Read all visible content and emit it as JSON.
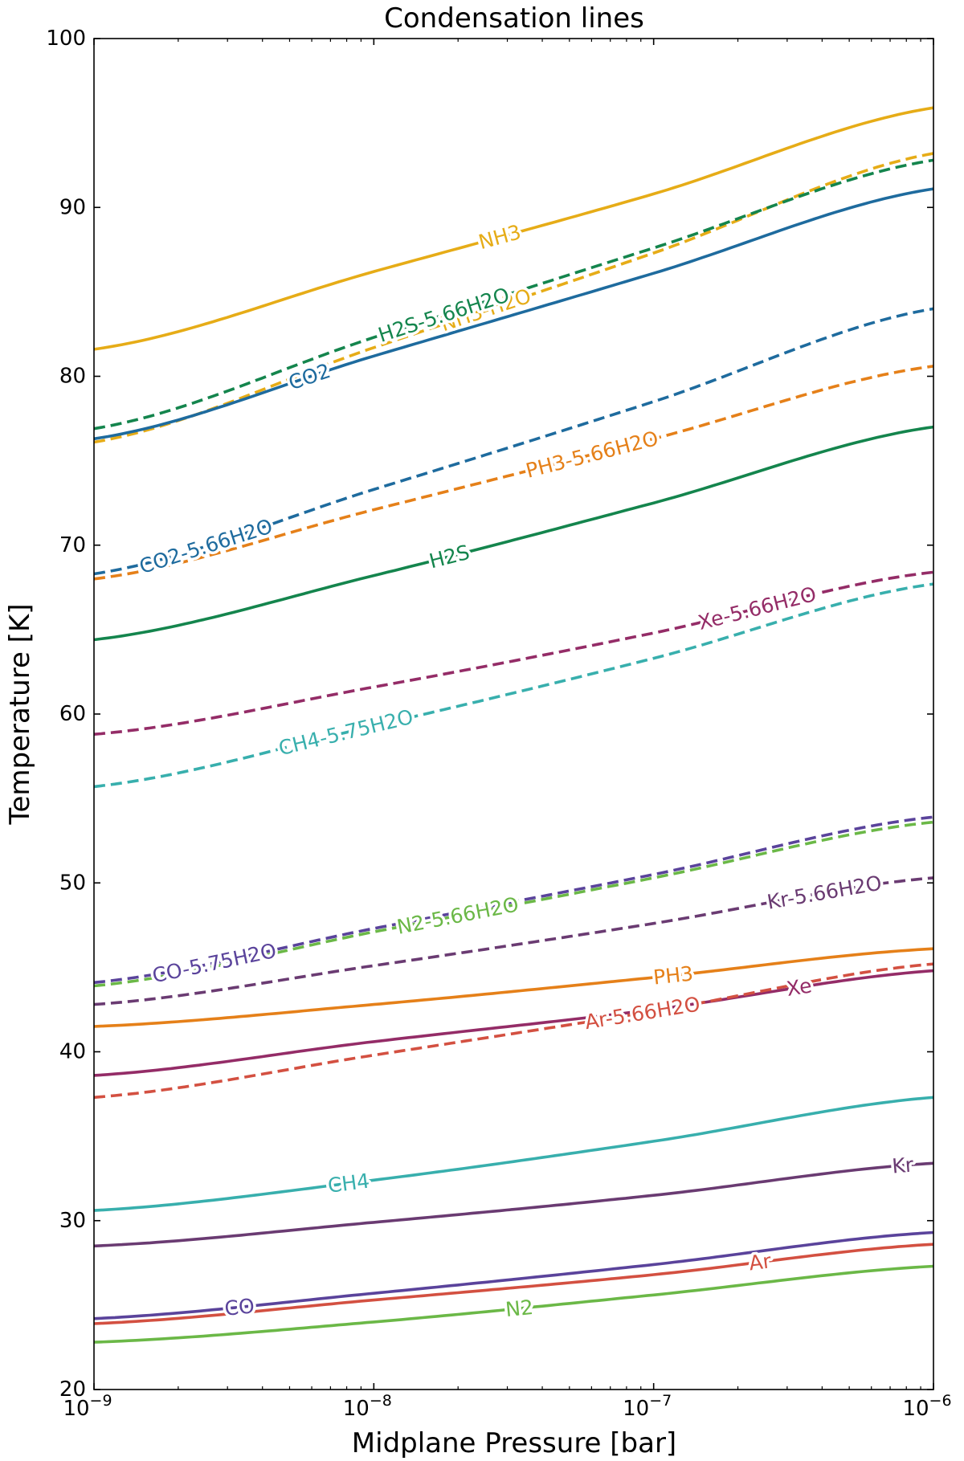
{
  "chart_data": {
    "type": "line",
    "title": "Condensation lines",
    "xlabel": "Midplane Pressure [bar]",
    "ylabel": "Temperature [K]",
    "xscale": "log",
    "xlim_log10": [
      -9,
      -6
    ],
    "ylim": [
      20,
      100
    ],
    "x_ticks": [
      {
        "log10": -9,
        "base": "10",
        "exp": "−9"
      },
      {
        "log10": -8,
        "base": "10",
        "exp": "−8"
      },
      {
        "log10": -7,
        "base": "10",
        "exp": "−7"
      },
      {
        "log10": -6,
        "base": "10",
        "exp": "−6"
      }
    ],
    "y_ticks": [
      "20",
      "30",
      "40",
      "50",
      "60",
      "70",
      "80",
      "90",
      "100"
    ],
    "series": [
      {
        "name": "NH3",
        "label": "NH3",
        "color": "#E6AC17",
        "dash": false,
        "values": [
          81.6,
          86.2,
          90.8,
          95.9
        ],
        "label_at": -7.55,
        "label_dir": 1
      },
      {
        "name": "NH3-H2O",
        "label": "NH3-H2O",
        "color": "#E6AC17",
        "dash": true,
        "values": [
          76.1,
          81.7,
          87.3,
          93.2
        ],
        "label_at": -7.6,
        "label_dir": 1
      },
      {
        "name": "H2S-5.66H2O",
        "label": "H2S-5.66H2O",
        "color": "#14854D",
        "dash": true,
        "values": [
          76.9,
          82.3,
          87.6,
          92.8
        ],
        "label_at": -7.75,
        "label_dir": 1
      },
      {
        "name": "CO2",
        "label": "CO2",
        "color": "#1E6B9E",
        "dash": false,
        "values": [
          76.3,
          81.2,
          86.1,
          91.1
        ],
        "label_at": -8.23,
        "label_dir": 1
      },
      {
        "name": "CO2-5.66H2O",
        "label": "CO2-5.66H2O",
        "color": "#1E6B9E",
        "dash": true,
        "values": [
          68.3,
          73.3,
          78.5,
          84.0
        ],
        "label_at": -8.6,
        "label_dir": -1
      },
      {
        "name": "PH3-5.66H2O",
        "label": "PH3-5.66H2O",
        "color": "#E58019",
        "dash": true,
        "values": [
          68.0,
          72.1,
          76.3,
          80.6
        ],
        "label_at": -7.22,
        "label_dir": 1
      },
      {
        "name": "H2S",
        "label": "H2S",
        "color": "#14854D",
        "dash": false,
        "values": [
          64.4,
          68.2,
          72.5,
          77.0
        ],
        "label_at": -7.73,
        "label_dir": 1
      },
      {
        "name": "Xe-5.66H2O",
        "label": "Xe-5.66H2O",
        "color": "#942C67",
        "dash": true,
        "values": [
          58.8,
          61.6,
          64.8,
          68.4
        ],
        "label_at": -6.63,
        "label_dir": -1
      },
      {
        "name": "CH4-5.75H2O",
        "label": "CH4-5.75H2O",
        "color": "#38AFAD",
        "dash": true,
        "values": [
          55.7,
          59.3,
          63.3,
          67.7
        ],
        "label_at": -8.1,
        "label_dir": -1
      },
      {
        "name": "CO-5.75H2O",
        "label": "CO-5.75H2O",
        "color": "#5A439B",
        "dash": true,
        "values": [
          44.1,
          47.3,
          50.5,
          53.9
        ],
        "label_at": -8.57,
        "label_dir": -1
      },
      {
        "name": "N2-5.66H2O",
        "label": "N2-5.66H2O",
        "color": "#6BB847",
        "dash": true,
        "values": [
          43.9,
          47.1,
          50.3,
          53.6
        ],
        "label_at": -7.7,
        "label_dir": 1
      },
      {
        "name": "Kr-5.66H2O",
        "label": "Kr-5.66H2O",
        "color": "#6A3B72",
        "dash": true,
        "values": [
          42.8,
          45.1,
          47.6,
          50.3
        ],
        "label_at": -6.39,
        "label_dir": -1
      },
      {
        "name": "PH3",
        "label": "PH3",
        "color": "#E58019",
        "dash": false,
        "values": [
          41.5,
          42.8,
          44.4,
          46.1
        ],
        "label_at": -6.93,
        "label_dir": 1
      },
      {
        "name": "Xe",
        "label": "Xe",
        "color": "#942C67",
        "dash": false,
        "values": [
          38.6,
          40.6,
          42.5,
          44.8
        ],
        "label_at": -6.48,
        "label_dir": 1
      },
      {
        "name": "Ar-5.66H2O",
        "label": "Ar-5.66H2O",
        "color": "#D35041",
        "dash": true,
        "values": [
          37.3,
          39.8,
          42.4,
          45.2
        ],
        "label_at": -7.04,
        "label_dir": -1
      },
      {
        "name": "CH4",
        "label": "CH4",
        "color": "#38AFAD",
        "dash": false,
        "values": [
          30.6,
          32.4,
          34.7,
          37.3
        ],
        "label_at": -8.09,
        "label_dir": 1
      },
      {
        "name": "Kr",
        "label": "Kr",
        "color": "#6A3B72",
        "dash": false,
        "values": [
          28.5,
          29.9,
          31.5,
          33.4
        ],
        "label_at": -6.11,
        "label_dir": 1
      },
      {
        "name": "CO",
        "label": "CO",
        "color": "#5A439B",
        "dash": false,
        "values": [
          24.2,
          25.7,
          27.4,
          29.3
        ],
        "label_at": -8.48,
        "label_dir": 1
      },
      {
        "name": "Ar",
        "label": "Ar",
        "color": "#D35041",
        "dash": false,
        "values": [
          23.9,
          25.3,
          26.8,
          28.6
        ],
        "label_at": -6.62,
        "label_dir": 1
      },
      {
        "name": "N2",
        "label": "N2",
        "color": "#6BB847",
        "dash": false,
        "values": [
          22.8,
          24.0,
          25.6,
          27.3
        ],
        "label_at": -7.48,
        "label_dir": 1
      }
    ]
  }
}
